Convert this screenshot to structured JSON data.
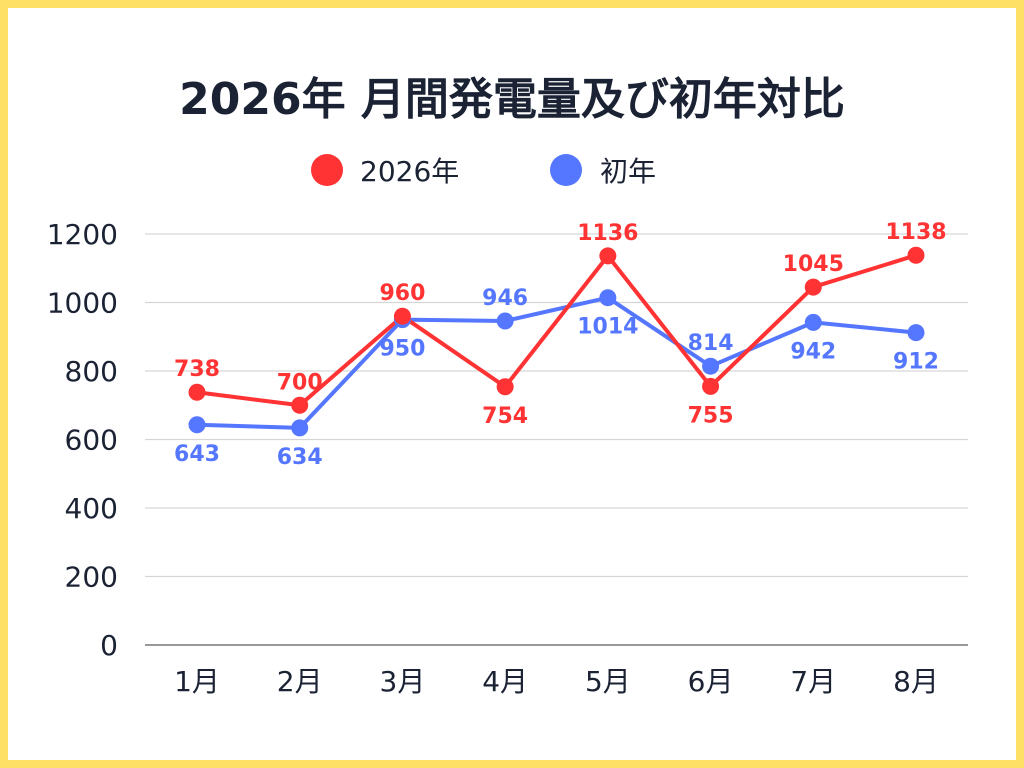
{
  "chart_data": {
    "type": "line",
    "title": "2026年 月間発電量及び初年対比",
    "categories": [
      "1月",
      "2月",
      "3月",
      "4月",
      "5月",
      "6月",
      "7月",
      "8月"
    ],
    "series": [
      {
        "name": "2026年",
        "color": "#ff3333",
        "values": [
          738,
          700,
          960,
          754,
          1136,
          755,
          1045,
          1138
        ]
      },
      {
        "name": "初年",
        "color": "#5577ff",
        "values": [
          643,
          634,
          950,
          946,
          1014,
          814,
          942,
          912
        ]
      }
    ],
    "yticks": [
      "0",
      "200",
      "400",
      "600",
      "800",
      "1000",
      "1200"
    ],
    "ylim": [
      0,
      1200
    ],
    "grid": true,
    "legend_position": "top-center"
  }
}
